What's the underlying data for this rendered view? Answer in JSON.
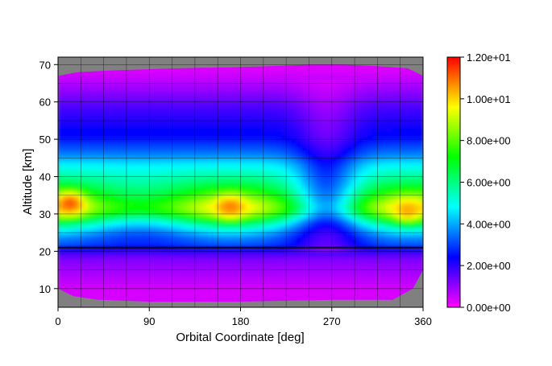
{
  "chart_data": {
    "type": "heatmap",
    "title": "",
    "xlabel": "Orbital Coordinate [deg]",
    "ylabel": "Altitude [km]",
    "xlim": [
      0,
      360
    ],
    "ylim": [
      5,
      72
    ],
    "xticks": [
      0,
      90,
      180,
      270,
      360
    ],
    "yticks": [
      10,
      20,
      30,
      40,
      50,
      60,
      70
    ],
    "grid": true,
    "missing_color": "#808080",
    "colorbar": {
      "min": 0,
      "max": 12,
      "ticks": [
        "0.00e+00",
        "2.00e+00",
        "4.00e+00",
        "6.00e+00",
        "8.00e+00",
        "1.00e+01",
        "1.20e+01"
      ],
      "tick_values": [
        0,
        2,
        4,
        6,
        8,
        10,
        12
      ],
      "colormap": [
        "#ff00ff",
        "#8000ff",
        "#0000ff",
        "#0080ff",
        "#00ffff",
        "#00ff80",
        "#00ff00",
        "#80ff00",
        "#ffff00",
        "#ff8000",
        "#ff0000"
      ]
    },
    "reference_line": {
      "altitude": 21,
      "color": "#000000"
    },
    "altitude_profile": {
      "altitude": [
        7,
        10,
        14,
        18,
        20,
        21,
        22,
        24,
        26,
        28,
        30,
        32,
        34,
        36,
        38,
        40,
        43,
        46,
        50,
        54,
        58,
        62,
        66,
        69
      ],
      "value": [
        0.4,
        0.4,
        0.8,
        1.2,
        2.0,
        2.4,
        3.0,
        3.4,
        4.4,
        5.8,
        7.8,
        8.6,
        7.8,
        7.0,
        6.2,
        5.6,
        4.8,
        3.6,
        2.6,
        2.2,
        1.8,
        1.2,
        0.6,
        0.3
      ]
    },
    "hotspots": [
      {
        "x": 12,
        "altitude": 33,
        "value": 11.2
      },
      {
        "x": 170,
        "altitude": 32,
        "value": 10.8
      },
      {
        "x": 345,
        "altitude": 31,
        "value": 10.4
      }
    ],
    "depression": {
      "x_center": 265,
      "x_width": 42,
      "alt_min": 20,
      "alt_max": 66,
      "factor": 0.55
    },
    "coverage_top": [
      [
        0,
        67
      ],
      [
        20,
        68
      ],
      [
        60,
        68.5
      ],
      [
        120,
        69
      ],
      [
        200,
        69.5
      ],
      [
        250,
        70
      ],
      [
        280,
        70
      ],
      [
        320,
        69.5
      ],
      [
        345,
        69
      ],
      [
        360,
        67
      ]
    ],
    "coverage_bottom": [
      [
        0,
        10
      ],
      [
        15,
        8
      ],
      [
        40,
        7
      ],
      [
        90,
        6.5
      ],
      [
        180,
        6.5
      ],
      [
        270,
        7
      ],
      [
        330,
        7
      ],
      [
        350,
        10
      ],
      [
        360,
        15
      ]
    ]
  }
}
